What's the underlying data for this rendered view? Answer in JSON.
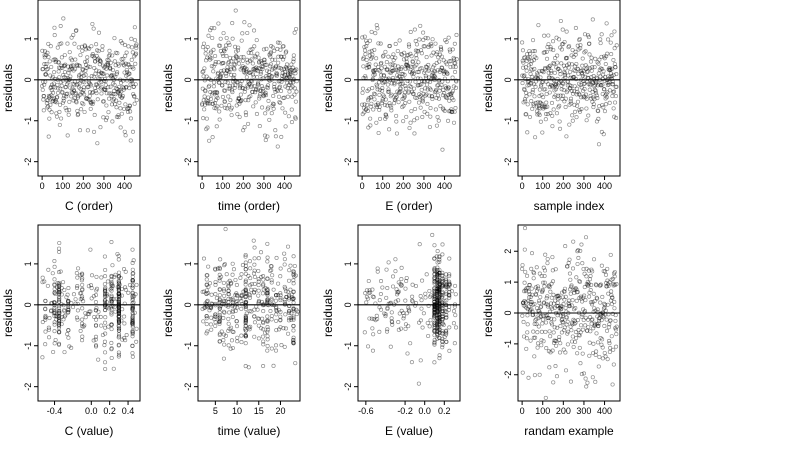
{
  "figure": {
    "colors": {
      "point": "#000000",
      "background": "#ffffff",
      "frame": "#000000"
    }
  },
  "chart_data": [
    {
      "type": "scatter",
      "xlabel": "C (order)",
      "ylabel": "residuals",
      "xlim": [
        -20,
        475
      ],
      "ylim": [
        -2.35,
        1.95
      ],
      "xticks": [
        0,
        100,
        200,
        300,
        400
      ],
      "xtick_labels": [
        "0",
        "100",
        "200",
        "300",
        "400"
      ],
      "yticks": [
        -2,
        -1,
        0,
        1
      ],
      "ytick_labels": [
        "-2",
        "-1",
        "0",
        "1"
      ],
      "hline": 0,
      "x_pattern": "index",
      "n": 460,
      "y_sd": 0.55,
      "seed": 11
    },
    {
      "type": "scatter",
      "xlabel": "time (order)",
      "ylabel": "residuals",
      "xlim": [
        -20,
        475
      ],
      "ylim": [
        -2.35,
        1.95
      ],
      "xticks": [
        0,
        100,
        200,
        300,
        400
      ],
      "xtick_labels": [
        "0",
        "100",
        "200",
        "300",
        "400"
      ],
      "yticks": [
        -2,
        -1,
        0,
        1
      ],
      "ytick_labels": [
        "-2",
        "-1",
        "0",
        "1"
      ],
      "hline": 0,
      "x_pattern": "index",
      "n": 460,
      "y_sd": 0.55,
      "seed": 23
    },
    {
      "type": "scatter",
      "xlabel": "E (order)",
      "ylabel": "residuals",
      "xlim": [
        -20,
        475
      ],
      "ylim": [
        -2.35,
        1.95
      ],
      "xticks": [
        0,
        100,
        200,
        300,
        400
      ],
      "xtick_labels": [
        "0",
        "100",
        "200",
        "300",
        "400"
      ],
      "yticks": [
        -2,
        -1,
        0,
        1
      ],
      "ytick_labels": [
        "-2",
        "-1",
        "0",
        "1"
      ],
      "hline": 0,
      "x_pattern": "index",
      "n": 460,
      "y_sd": 0.55,
      "seed": 37
    },
    {
      "type": "scatter",
      "xlabel": "sample index",
      "ylabel": "residuals",
      "xlim": [
        -20,
        475
      ],
      "ylim": [
        -2.35,
        1.95
      ],
      "xticks": [
        0,
        100,
        200,
        300,
        400
      ],
      "xtick_labels": [
        "0",
        "100",
        "200",
        "300",
        "400"
      ],
      "yticks": [
        -2,
        -1,
        0,
        1
      ],
      "ytick_labels": [
        "-2",
        "-1",
        "0",
        "1"
      ],
      "hline": 0,
      "x_pattern": "index",
      "n": 460,
      "y_sd": 0.55,
      "seed": 41
    },
    {
      "type": "scatter",
      "xlabel": "C (value)",
      "ylabel": "residuals",
      "xlim": [
        -0.58,
        0.53
      ],
      "ylim": [
        -2.35,
        1.95
      ],
      "xticks": [
        -0.4,
        0.0,
        0.2,
        0.4
      ],
      "xtick_labels": [
        "-0.4",
        "0.0",
        "0.2",
        "0.4"
      ],
      "yticks": [
        -2,
        -1,
        0,
        1
      ],
      "ytick_labels": [
        "-2",
        "-1",
        "0",
        "1"
      ],
      "hline": 0,
      "x_pattern": "clusters",
      "x_range": [
        -0.55,
        0.5
      ],
      "clusters": [
        -0.5,
        -0.4,
        -0.35,
        -0.25,
        -0.1,
        0.05,
        0.15,
        0.22,
        0.3,
        0.45
      ],
      "cluster_weights": [
        1,
        2,
        3,
        1,
        1,
        1,
        2,
        2,
        5,
        4
      ],
      "n": 460,
      "y_sd": 0.55,
      "seed": 53
    },
    {
      "type": "scatter",
      "xlabel": "time (value)",
      "ylabel": "residuals",
      "xlim": [
        1,
        24.5
      ],
      "ylim": [
        -2.35,
        1.95
      ],
      "xticks": [
        5,
        10,
        15,
        20
      ],
      "xtick_labels": [
        "5",
        "10",
        "15",
        "20"
      ],
      "yticks": [
        -2,
        -1,
        0,
        1
      ],
      "ytick_labels": [
        "-2",
        "-1",
        "0",
        "1"
      ],
      "hline": 0,
      "x_pattern": "clusters",
      "x_range": [
        2,
        24
      ],
      "clusters": [
        3,
        4,
        5,
        6,
        7,
        8,
        9,
        10,
        11,
        12,
        13,
        14,
        15,
        16,
        17,
        18,
        19,
        20,
        21,
        22,
        23
      ],
      "cluster_weights": [
        1,
        1,
        1,
        2,
        1,
        1,
        1,
        1,
        1,
        4,
        1,
        1,
        1,
        1,
        2,
        1,
        1,
        1,
        1,
        1,
        3
      ],
      "n": 460,
      "y_sd": 0.55,
      "seed": 67
    },
    {
      "type": "scatter",
      "xlabel": "E (value)",
      "ylabel": "residuals",
      "xlim": [
        -0.68,
        0.36
      ],
      "ylim": [
        -2.35,
        1.95
      ],
      "xticks": [
        -0.6,
        -0.2,
        0.0,
        0.2
      ],
      "xtick_labels": [
        "-0.6",
        "-0.2",
        "0.0",
        "0.2"
      ],
      "yticks": [
        -2,
        -1,
        0,
        1
      ],
      "ytick_labels": [
        "-2",
        "-1",
        "0",
        "1"
      ],
      "hline": 0,
      "x_pattern": "clusters",
      "x_range": [
        -0.65,
        0.32
      ],
      "clusters": [
        0.1,
        0.13,
        0.15,
        0.18,
        0.22,
        0.25
      ],
      "cluster_weights": [
        5,
        6,
        5,
        3,
        2,
        1
      ],
      "spread_fraction": 0.35,
      "n": 460,
      "y_sd": 0.55,
      "seed": 79
    },
    {
      "type": "scatter",
      "xlabel": "randam example",
      "ylabel": "residuals",
      "xlim": [
        -20,
        475
      ],
      "ylim": [
        -2.85,
        2.85
      ],
      "xticks": [
        0,
        100,
        200,
        300,
        400
      ],
      "xtick_labels": [
        "0",
        "100",
        "200",
        "300",
        "400"
      ],
      "yticks": [
        -2,
        -1,
        0,
        1,
        2
      ],
      "ytick_labels": [
        "-2",
        "-1",
        "0",
        "1",
        "2"
      ],
      "hline": 0,
      "x_pattern": "index",
      "n": 460,
      "y_sd": 1.0,
      "seed": 97
    }
  ]
}
